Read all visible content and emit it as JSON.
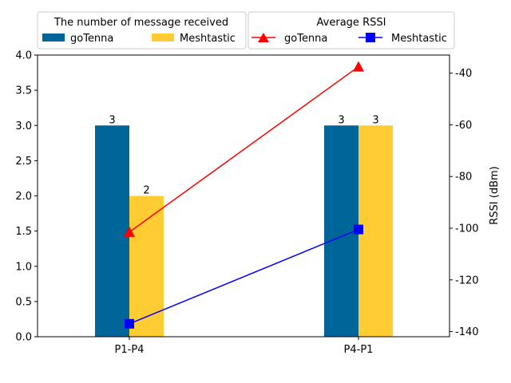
{
  "chart_data": {
    "type": "bar",
    "categories": [
      "P1-P4",
      "P4-P1"
    ],
    "left_axis": {
      "ylim": [
        0,
        4.0
      ],
      "ticks": [
        "0.0",
        "0.5",
        "1.0",
        "1.5",
        "2.0",
        "2.5",
        "3.0",
        "3.5",
        "4.0"
      ],
      "ylabel": ""
    },
    "right_axis": {
      "ylim": [
        -142,
        -33
      ],
      "ticks": [
        "-40",
        "-60",
        "-80",
        "-100",
        "-120",
        "-140"
      ],
      "ylabel": "RSSI (dBm)"
    },
    "bar_series": [
      {
        "name": "goTenna",
        "color": "#006699",
        "values": [
          3,
          3
        ],
        "labels": [
          "3",
          "3"
        ]
      },
      {
        "name": "Meshtastic",
        "color": "#ffcc33",
        "values": [
          2,
          3
        ],
        "labels": [
          "2",
          "3"
        ]
      }
    ],
    "line_series": [
      {
        "name": "goTenna",
        "color": "#ff0000",
        "marker": "triangle",
        "values": [
          -101.5,
          -37.5
        ]
      },
      {
        "name": "Meshtastic",
        "color": "#0000ff",
        "marker": "square",
        "values": [
          -137,
          -100.5
        ]
      }
    ],
    "legends": [
      {
        "title": "The number of message received",
        "placement": "top-left",
        "entries": [
          "goTenna",
          "Meshtastic"
        ]
      },
      {
        "title": "Average RSSI",
        "placement": "top-right",
        "entries": [
          "goTenna",
          "Meshtastic"
        ]
      }
    ],
    "grid": false
  }
}
